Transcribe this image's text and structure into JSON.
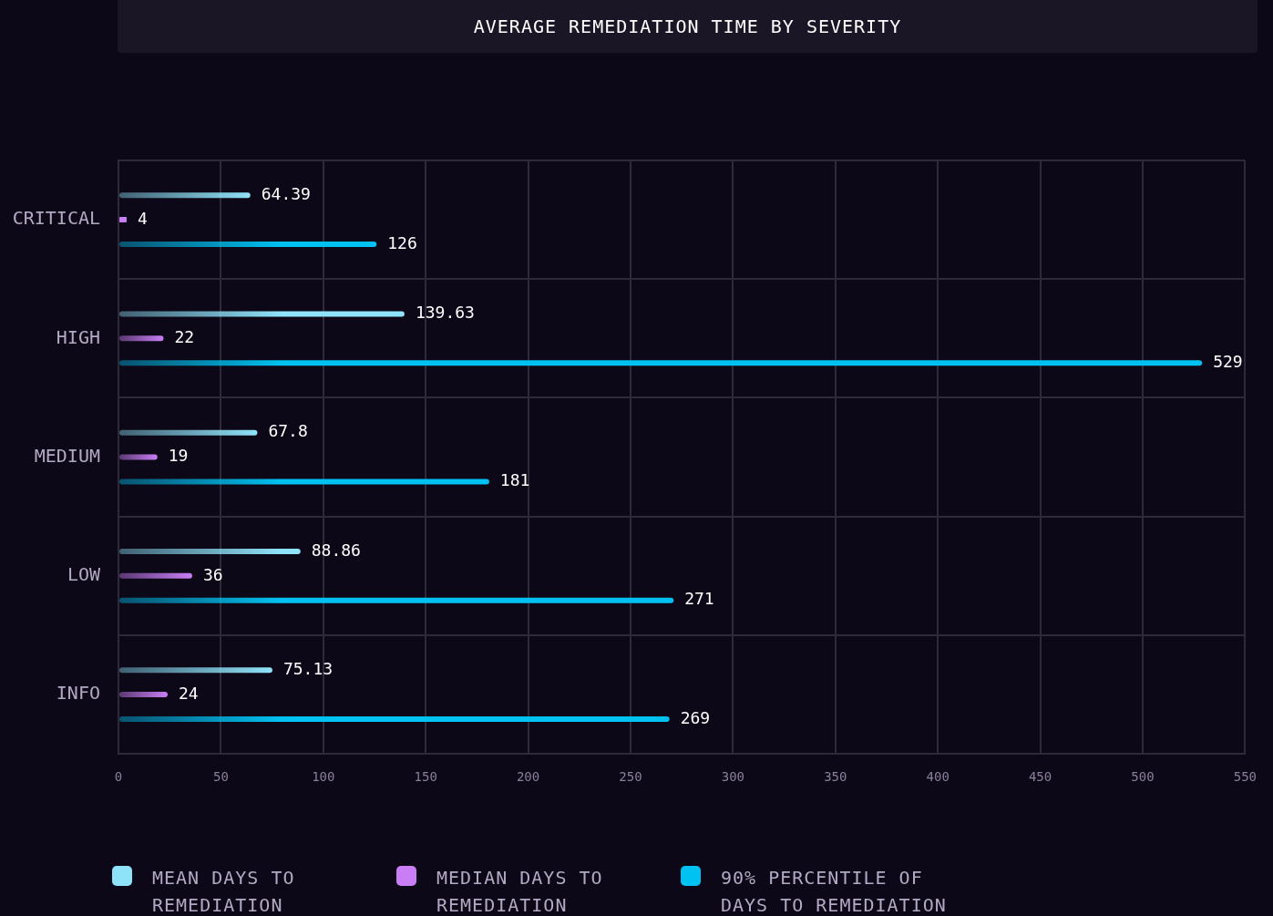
{
  "chart_data": {
    "type": "bar",
    "orientation": "horizontal",
    "title": "AVERAGE REMEDIATION TIME BY SEVERITY",
    "categories": [
      "CRITICAL",
      "HIGH",
      "MEDIUM",
      "LOW",
      "INFO"
    ],
    "series": [
      {
        "name": "MEAN DAYS TO REMEDIATION",
        "color": "#8fe3f9",
        "values": [
          64.39,
          139.63,
          67.8,
          88.86,
          75.13
        ]
      },
      {
        "name": "MEDIAN DAYS TO REMEDIATION",
        "color": "#c97ef5",
        "values": [
          4,
          22,
          19,
          36,
          24
        ]
      },
      {
        "name": "90% PERCENTILE OF DAYS TO REMEDIATION",
        "color": "#00c2f2",
        "values": [
          126,
          529,
          181,
          271,
          269
        ]
      }
    ],
    "xlim": [
      0,
      550
    ],
    "xticks": [
      0,
      50,
      100,
      150,
      200,
      250,
      300,
      350,
      400,
      450,
      500,
      550
    ],
    "grid": true,
    "legend": "bottom",
    "data_labels": true
  }
}
